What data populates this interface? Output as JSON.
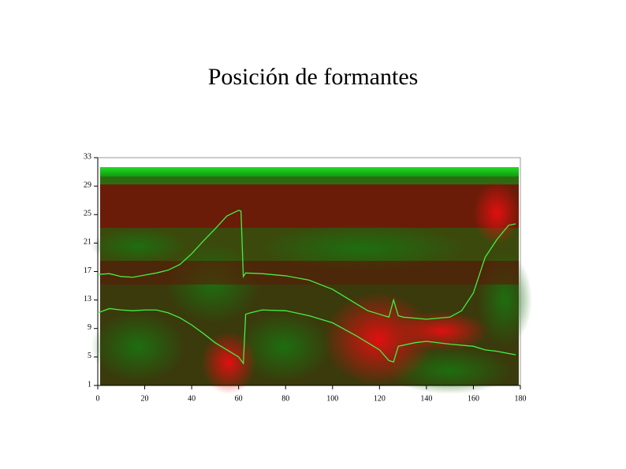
{
  "chart_data": {
    "type": "line",
    "title": "Posición de formantes",
    "xlim": [
      0,
      180
    ],
    "ylim": [
      1,
      33
    ],
    "xticks": [
      0,
      20,
      40,
      60,
      80,
      100,
      120,
      140,
      160,
      180
    ],
    "yticks": [
      1,
      5,
      9,
      13,
      17,
      21,
      25,
      29,
      33
    ],
    "series": [
      {
        "color": "#44ee44",
        "x": [
          0,
          5,
          10,
          15,
          20,
          25,
          30,
          35,
          40,
          45,
          50,
          55,
          60,
          61,
          62,
          63,
          70,
          80,
          90,
          100,
          110,
          115,
          120,
          124,
          126,
          128,
          130,
          140,
          150,
          155,
          160,
          165,
          170,
          175,
          178
        ],
        "values": [
          16.6,
          16.7,
          16.3,
          16.2,
          16.5,
          16.8,
          17.2,
          18,
          19.5,
          21.3,
          23,
          24.8,
          25.6,
          25.5,
          16.3,
          16.8,
          16.7,
          16.4,
          15.8,
          14.5,
          12.5,
          11.5,
          11,
          10.6,
          13,
          10.8,
          10.6,
          10.3,
          10.6,
          11.5,
          14,
          19,
          21.5,
          23.5,
          23.7
        ]
      },
      {
        "color": "#44ee44",
        "x": [
          0,
          5,
          10,
          15,
          20,
          25,
          30,
          35,
          40,
          45,
          50,
          55,
          60,
          62,
          63,
          65,
          70,
          80,
          90,
          100,
          110,
          115,
          120,
          124,
          126,
          128,
          135,
          140,
          150,
          160,
          165,
          170,
          178
        ],
        "values": [
          11.2,
          11.8,
          11.6,
          11.5,
          11.6,
          11.6,
          11.2,
          10.5,
          9.5,
          8.3,
          7,
          6,
          5,
          4.1,
          11,
          11.2,
          11.6,
          11.5,
          10.8,
          9.8,
          8,
          7,
          6,
          4.5,
          4.3,
          6.5,
          7,
          7.2,
          6.8,
          6.5,
          6,
          5.8,
          5.3
        ]
      }
    ]
  }
}
